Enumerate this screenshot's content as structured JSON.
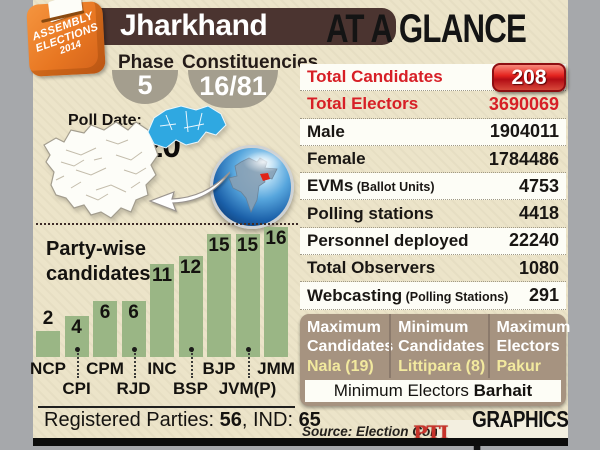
{
  "badge": {
    "line1": "ASSEMBLY",
    "line2": "ELECTIONS",
    "line3": "2014"
  },
  "header": {
    "title": "Jharkhand",
    "glance": "AT A GLANCE"
  },
  "phase": {
    "label": "Phase",
    "value": "5"
  },
  "constituencies": {
    "label": "Constituencies",
    "value": "16/81"
  },
  "poll_date": {
    "label": "Poll Date:",
    "value": "DEC 20"
  },
  "chart_data": {
    "type": "bar",
    "title": "Party-wise candidates",
    "categories": [
      "NCP",
      "CPI",
      "CPM",
      "RJD",
      "INC",
      "BSP",
      "BJP",
      "JVM(P)",
      "JMM"
    ],
    "values": [
      2,
      4,
      6,
      6,
      11,
      12,
      15,
      15,
      16
    ],
    "bar_color": "#9ab685",
    "ylim": [
      0,
      16
    ],
    "grid": false,
    "legend": "none",
    "note": "Registered Parties: 56, IND: 65"
  },
  "registered": {
    "label1": "Registered Parties: ",
    "num1": "56",
    "label2": ", IND: ",
    "num2": "65"
  },
  "stats": {
    "rows": [
      {
        "label": "Total Candidates",
        "sub": "",
        "value": "208",
        "red": true,
        "button": true
      },
      {
        "label": "Total Electors",
        "sub": "",
        "value": "3690069",
        "red": true,
        "button": false
      },
      {
        "label": "Male",
        "sub": "",
        "value": "1904011",
        "red": false,
        "button": false
      },
      {
        "label": "Female",
        "sub": "",
        "value": "1784486",
        "red": false,
        "button": false
      },
      {
        "label": "EVMs",
        "sub": "(Ballot Units)",
        "value": "4753",
        "red": false,
        "button": false
      },
      {
        "label": "Polling stations",
        "sub": "",
        "value": "4418",
        "red": false,
        "button": false
      },
      {
        "label": "Personnel deployed",
        "sub": "",
        "value": "22240",
        "red": false,
        "button": false
      },
      {
        "label": "Total Observers",
        "sub": "",
        "value": "1080",
        "red": false,
        "button": false
      },
      {
        "label": "Webcasting",
        "sub": "(Polling Stations)",
        "value": "291",
        "red": false,
        "button": false
      }
    ]
  },
  "extremes": {
    "columns": [
      {
        "h1": "Maximum",
        "h2": "Candidates",
        "value": "Nala (19)"
      },
      {
        "h1": "Minimum",
        "h2": "Candidates",
        "value": "Littipara (8)"
      },
      {
        "h1": "Maximum",
        "h2": "Electors",
        "value": "Pakur"
      }
    ],
    "footer_label": "Minimum Electors",
    "footer_value": "Barhait"
  },
  "footer": {
    "source": "Source: Election Commission",
    "pti": "PTI",
    "graphics": "GRAPHICS"
  },
  "colors": {
    "accent_red": "#d71f26",
    "bar_green": "#9ab685",
    "brown": "#4b3430",
    "orange": "#e87722",
    "map_blue": "#2fa8e1",
    "beige": "#ece4c9",
    "box_brown": "#a69380",
    "value_yellow": "#f2e99e"
  }
}
